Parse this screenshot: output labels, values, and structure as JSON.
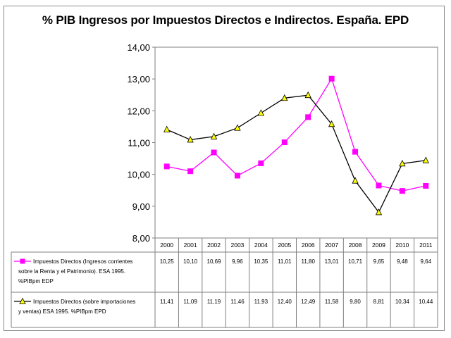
{
  "chart_data": {
    "type": "line",
    "title": "% PIB Ingresos por Impuestos Directos e Indirectos. España. EPD",
    "categories": [
      "2000",
      "2001",
      "2002",
      "2003",
      "2004",
      "2005",
      "2006",
      "2007",
      "2008",
      "2009",
      "2010",
      "2011"
    ],
    "ylim": [
      8,
      14
    ],
    "yticks": [
      "8,00",
      "9,00",
      "10,00",
      "11,00",
      "12,00",
      "13,00",
      "14,00"
    ],
    "grid": false,
    "legend": "data-table-below",
    "series": [
      {
        "name_lines": [
          "Impuestos Directos (Ingresos corrientes",
          "sobre la Renta y el Patrimonio). ESA 1995.",
          "%PIBpm EDP"
        ],
        "marker": "square",
        "color": "#ff00ff",
        "values": [
          10.25,
          10.1,
          10.69,
          9.96,
          10.35,
          11.01,
          11.8,
          13.01,
          10.71,
          9.65,
          9.48,
          9.64
        ],
        "labels": [
          "10,25",
          "10,10",
          "10,69",
          "9,96",
          "10,35",
          "11,01",
          "11,80",
          "13,01",
          "10,71",
          "9,65",
          "9,48",
          "9,64"
        ]
      },
      {
        "name_lines": [
          "Impuestos Directos (sobre importaciones",
          "y ventas) ESA 1995. %PIBpm EPD"
        ],
        "marker": "triangle",
        "color": "#000000",
        "marker_fill": "#ffff00",
        "values": [
          11.41,
          11.09,
          11.19,
          11.46,
          11.93,
          12.4,
          12.49,
          11.58,
          9.8,
          8.81,
          10.34,
          10.44
        ],
        "labels": [
          "11,41",
          "11,09",
          "11,19",
          "11,46",
          "11,93",
          "12,40",
          "12,49",
          "11,58",
          "9,80",
          "8,81",
          "10,34",
          "10,44"
        ]
      }
    ]
  }
}
